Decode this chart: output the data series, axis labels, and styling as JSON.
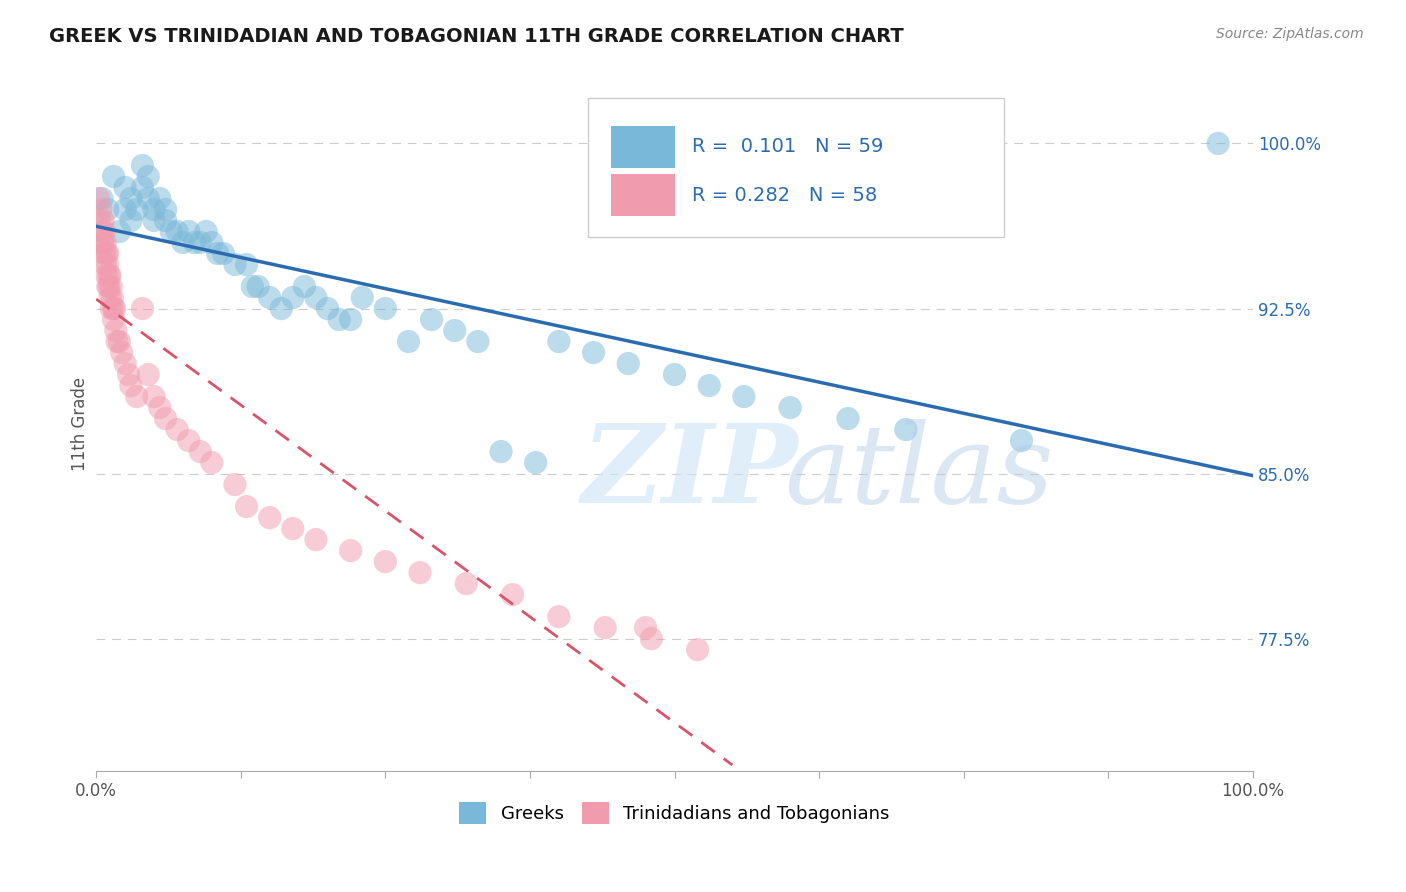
{
  "title": "GREEK VS TRINIDADIAN AND TOBAGONIAN 11TH GRADE CORRELATION CHART",
  "source": "Source: ZipAtlas.com",
  "ylabel": "11th Grade",
  "xlim": [
    0,
    1.0
  ],
  "ylim": [
    0.715,
    1.03
  ],
  "ytick_positions": [
    0.775,
    0.85,
    0.925,
    1.0
  ],
  "ytick_labels": [
    "77.5%",
    "85.0%",
    "92.5%",
    "100.0%"
  ],
  "blue_R": 0.101,
  "blue_N": 59,
  "pink_R": 0.282,
  "pink_N": 58,
  "blue_color": "#7ab8d9",
  "pink_color": "#f09bae",
  "blue_line_color": "#2b6cb0",
  "pink_line_color": "#d9536a",
  "legend_label_blue": "Greeks",
  "legend_label_pink": "Trinidadians and Tobagonians",
  "blue_scatter_x": [
    0.005,
    0.01,
    0.015,
    0.02,
    0.025,
    0.025,
    0.03,
    0.03,
    0.035,
    0.04,
    0.04,
    0.045,
    0.045,
    0.05,
    0.05,
    0.055,
    0.06,
    0.06,
    0.065,
    0.07,
    0.075,
    0.08,
    0.085,
    0.09,
    0.095,
    0.1,
    0.105,
    0.11,
    0.12,
    0.13,
    0.135,
    0.14,
    0.15,
    0.16,
    0.17,
    0.18,
    0.19,
    0.2,
    0.21,
    0.22,
    0.23,
    0.25,
    0.27,
    0.29,
    0.31,
    0.33,
    0.35,
    0.38,
    0.4,
    0.43,
    0.46,
    0.5,
    0.53,
    0.56,
    0.6,
    0.65,
    0.7,
    0.8,
    0.97
  ],
  "blue_scatter_y": [
    0.975,
    0.97,
    0.985,
    0.96,
    0.97,
    0.98,
    0.965,
    0.975,
    0.97,
    0.98,
    0.99,
    0.975,
    0.985,
    0.97,
    0.965,
    0.975,
    0.965,
    0.97,
    0.96,
    0.96,
    0.955,
    0.96,
    0.955,
    0.955,
    0.96,
    0.955,
    0.95,
    0.95,
    0.945,
    0.945,
    0.935,
    0.935,
    0.93,
    0.925,
    0.93,
    0.935,
    0.93,
    0.925,
    0.92,
    0.92,
    0.93,
    0.925,
    0.91,
    0.92,
    0.915,
    0.91,
    0.86,
    0.855,
    0.91,
    0.905,
    0.9,
    0.895,
    0.89,
    0.885,
    0.88,
    0.875,
    0.87,
    0.865,
    1.0
  ],
  "pink_scatter_x": [
    0.002,
    0.003,
    0.004,
    0.005,
    0.005,
    0.006,
    0.006,
    0.007,
    0.007,
    0.008,
    0.008,
    0.009,
    0.009,
    0.01,
    0.01,
    0.01,
    0.011,
    0.011,
    0.012,
    0.012,
    0.013,
    0.013,
    0.014,
    0.015,
    0.015,
    0.016,
    0.017,
    0.018,
    0.02,
    0.022,
    0.025,
    0.028,
    0.03,
    0.035,
    0.04,
    0.045,
    0.05,
    0.055,
    0.06,
    0.07,
    0.08,
    0.09,
    0.1,
    0.12,
    0.13,
    0.15,
    0.17,
    0.19,
    0.22,
    0.25,
    0.28,
    0.32,
    0.36,
    0.4,
    0.44,
    0.48,
    0.52,
    0.475
  ],
  "pink_scatter_y": [
    0.975,
    0.965,
    0.97,
    0.96,
    0.955,
    0.965,
    0.955,
    0.96,
    0.95,
    0.955,
    0.945,
    0.95,
    0.94,
    0.945,
    0.935,
    0.95,
    0.94,
    0.935,
    0.94,
    0.93,
    0.935,
    0.925,
    0.93,
    0.925,
    0.92,
    0.925,
    0.915,
    0.91,
    0.91,
    0.905,
    0.9,
    0.895,
    0.89,
    0.885,
    0.925,
    0.895,
    0.885,
    0.88,
    0.875,
    0.87,
    0.865,
    0.86,
    0.855,
    0.845,
    0.835,
    0.83,
    0.825,
    0.82,
    0.815,
    0.81,
    0.805,
    0.8,
    0.795,
    0.785,
    0.78,
    0.775,
    0.77,
    0.78
  ]
}
